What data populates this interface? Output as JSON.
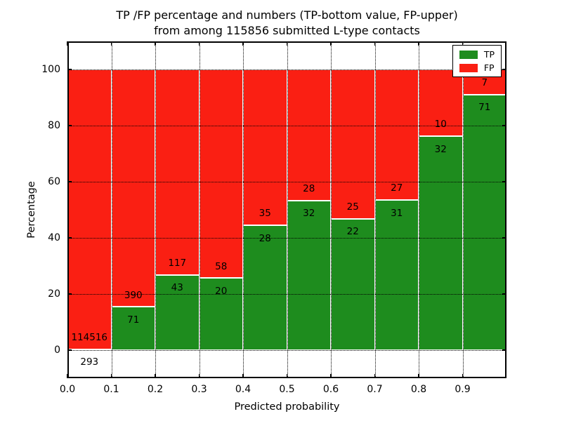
{
  "title": {
    "line1": "TP /FP percentage and numbers (TP-bottom value, FP-upper)",
    "line2": "from among 115856 submitted L-type contacts"
  },
  "chart_data": {
    "type": "bar",
    "stacked": true,
    "title": "TP /FP percentage and numbers (TP-bottom value, FP-upper) from among 115856 submitted L-type contacts",
    "xlabel": "Predicted probability",
    "ylabel": "Percentage",
    "total_contacts": 115856,
    "xlim": [
      0.0,
      1.0
    ],
    "ylim": [
      -10,
      110
    ],
    "bin_edges": [
      0.0,
      0.1,
      0.2,
      0.3,
      0.4,
      0.5,
      0.6,
      0.7,
      0.8,
      0.9,
      1.0
    ],
    "xtick_labels": [
      "0.0",
      "0.1",
      "0.2",
      "0.3",
      "0.4",
      "0.5",
      "0.6",
      "0.7",
      "0.8",
      "0.9"
    ],
    "ytick_values": [
      0,
      20,
      40,
      60,
      80,
      100
    ],
    "ytick_labels": [
      "0",
      "20",
      "40",
      "60",
      "80",
      "100"
    ],
    "grid": "dotted",
    "legend_position": "upper right",
    "series": [
      {
        "name": "TP",
        "color": "#1e8c1e",
        "counts": [
          293,
          71,
          43,
          20,
          28,
          32,
          22,
          31,
          32,
          71
        ]
      },
      {
        "name": "FP",
        "color": "#fa1f13",
        "counts": [
          114516,
          390,
          117,
          58,
          35,
          28,
          25,
          27,
          10,
          7
        ]
      }
    ],
    "tp_percent": [
      0.25,
      15.4,
      26.88,
      25.64,
      44.44,
      53.33,
      46.81,
      53.45,
      76.19,
      91.03
    ]
  },
  "legend": {
    "items": [
      {
        "label": "TP",
        "color": "#1e8c1e"
      },
      {
        "label": "FP",
        "color": "#fa1f13"
      }
    ]
  }
}
